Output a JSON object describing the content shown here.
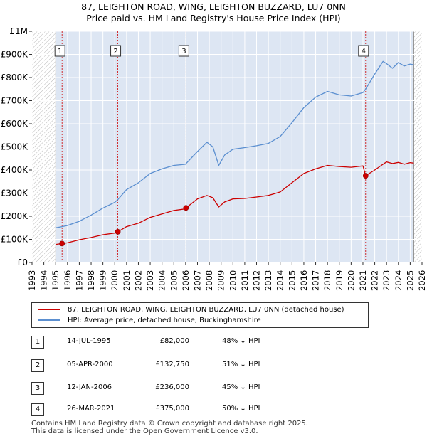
{
  "title_line1": "87, LEIGHTON ROAD, WING, LEIGHTON BUZZARD, LU7 0NN",
  "title_line2": "Price paid vs. HM Land Registry's House Price Index (HPI)",
  "colors": {
    "property": "#cc0000",
    "hpi": "#5b8fd0",
    "shade": "#dde6f3",
    "grid": "#ffffff",
    "marker_line": "#cc0000"
  },
  "legend": {
    "property_label": "87, LEIGHTON ROAD, WING, LEIGHTON BUZZARD, LU7 0NN (detached house)",
    "hpi_label": "HPI: Average price, detached house, Buckinghamshire"
  },
  "sales": [
    {
      "num": "1",
      "date": "14-JUL-1995",
      "price": "£82,000",
      "hpi_diff": "48% ↓ HPI"
    },
    {
      "num": "2",
      "date": "05-APR-2000",
      "price": "£132,750",
      "hpi_diff": "51% ↓ HPI"
    },
    {
      "num": "3",
      "date": "12-JAN-2006",
      "price": "£236,000",
      "hpi_diff": "45% ↓ HPI"
    },
    {
      "num": "4",
      "date": "26-MAR-2021",
      "price": "£375,000",
      "hpi_diff": "50% ↓ HPI"
    }
  ],
  "footer_line1": "Contains HM Land Registry data © Crown copyright and database right 2025.",
  "footer_line2": "This data is licensed under the Open Government Licence v3.0.",
  "chart_data": {
    "type": "line",
    "title": "87, LEIGHTON ROAD, WING, LEIGHTON BUZZARD, LU7 0NN — Price paid vs. HM Land Registry's House Price Index (HPI)",
    "xlabel": "",
    "ylabel": "",
    "xlim": [
      1993,
      2026
    ],
    "ylim": [
      0,
      1000000
    ],
    "x_ticks": [
      1993,
      1994,
      1995,
      1996,
      1997,
      1998,
      1999,
      2000,
      2001,
      2002,
      2003,
      2004,
      2005,
      2006,
      2007,
      2008,
      2009,
      2010,
      2011,
      2012,
      2013,
      2014,
      2015,
      2016,
      2017,
      2018,
      2019,
      2020,
      2021,
      2022,
      2023,
      2024,
      2025,
      2026
    ],
    "x_tick_labels": [
      "1993",
      "1994",
      "1995",
      "1996",
      "1997",
      "1998",
      "1999",
      "2000",
      "2001",
      "2002",
      "2003",
      "2004",
      "2005",
      "2006",
      "2007",
      "2008",
      "2009",
      "2010",
      "2011",
      "2012",
      "2013",
      "2014",
      "2015",
      "2016",
      "2017",
      "2018",
      "2019",
      "2020",
      "2021",
      "2022",
      "2023",
      "2024",
      "2025",
      "2026"
    ],
    "y_ticks": [
      0,
      100000,
      200000,
      300000,
      400000,
      500000,
      600000,
      700000,
      800000,
      900000,
      1000000
    ],
    "y_tick_labels": [
      "£0",
      "£100K",
      "£200K",
      "£300K",
      "£400K",
      "£500K",
      "£600K",
      "£700K",
      "£800K",
      "£900K",
      "£1M"
    ],
    "data_range": [
      1995.0,
      2025.3
    ],
    "sale_markers": [
      {
        "label": "1",
        "x": 1995.54,
        "y": 82000
      },
      {
        "label": "2",
        "x": 2000.26,
        "y": 132750
      },
      {
        "label": "3",
        "x": 2006.03,
        "y": 236000
      },
      {
        "label": "4",
        "x": 2021.23,
        "y": 375000
      }
    ],
    "series": [
      {
        "name": "87, LEIGHTON ROAD, WING, LEIGHTON BUZZARD, LU7 0NN (detached house)",
        "x": [
          1995.0,
          1995.54,
          1996.0,
          1997.0,
          1998.0,
          1999.0,
          2000.0,
          2000.26,
          2001.0,
          2002.0,
          2003.0,
          2004.0,
          2005.0,
          2006.0,
          2006.03,
          2007.0,
          2007.8,
          2008.3,
          2008.8,
          2009.3,
          2010.0,
          2011.0,
          2012.0,
          2013.0,
          2014.0,
          2015.0,
          2016.0,
          2017.0,
          2018.0,
          2019.0,
          2020.0,
          2021.0,
          2021.23,
          2022.0,
          2022.7,
          2023.0,
          2023.5,
          2024.0,
          2024.5,
          2025.0,
          2025.3
        ],
        "y": [
          78000,
          82000,
          85000,
          98000,
          108000,
          120000,
          127000,
          132750,
          155000,
          170000,
          195000,
          210000,
          225000,
          232000,
          236000,
          275000,
          290000,
          280000,
          240000,
          262000,
          275000,
          277000,
          283000,
          290000,
          305000,
          345000,
          385000,
          405000,
          420000,
          415000,
          412000,
          418000,
          375000,
          400000,
          425000,
          435000,
          428000,
          433000,
          425000,
          432000,
          430000
        ]
      },
      {
        "name": "HPI: Average price, detached house, Buckinghamshire",
        "x": [
          1995.0,
          1995.54,
          1996.0,
          1997.0,
          1998.0,
          1999.0,
          2000.0,
          2000.26,
          2001.0,
          2002.0,
          2003.0,
          2004.0,
          2005.0,
          2006.0,
          2006.03,
          2007.0,
          2007.8,
          2008.3,
          2008.8,
          2009.3,
          2010.0,
          2011.0,
          2012.0,
          2013.0,
          2014.0,
          2015.0,
          2016.0,
          2017.0,
          2018.0,
          2019.0,
          2020.0,
          2021.0,
          2021.23,
          2022.0,
          2022.7,
          2023.0,
          2023.5,
          2024.0,
          2024.5,
          2025.0,
          2025.3
        ],
        "y": [
          150000,
          155000,
          160000,
          178000,
          205000,
          235000,
          260000,
          272000,
          315000,
          345000,
          385000,
          405000,
          420000,
          425000,
          428000,
          480000,
          520000,
          500000,
          420000,
          465000,
          490000,
          497000,
          505000,
          515000,
          545000,
          605000,
          670000,
          715000,
          740000,
          725000,
          720000,
          735000,
          750000,
          815000,
          870000,
          860000,
          840000,
          865000,
          850000,
          858000,
          855000
        ]
      }
    ]
  }
}
